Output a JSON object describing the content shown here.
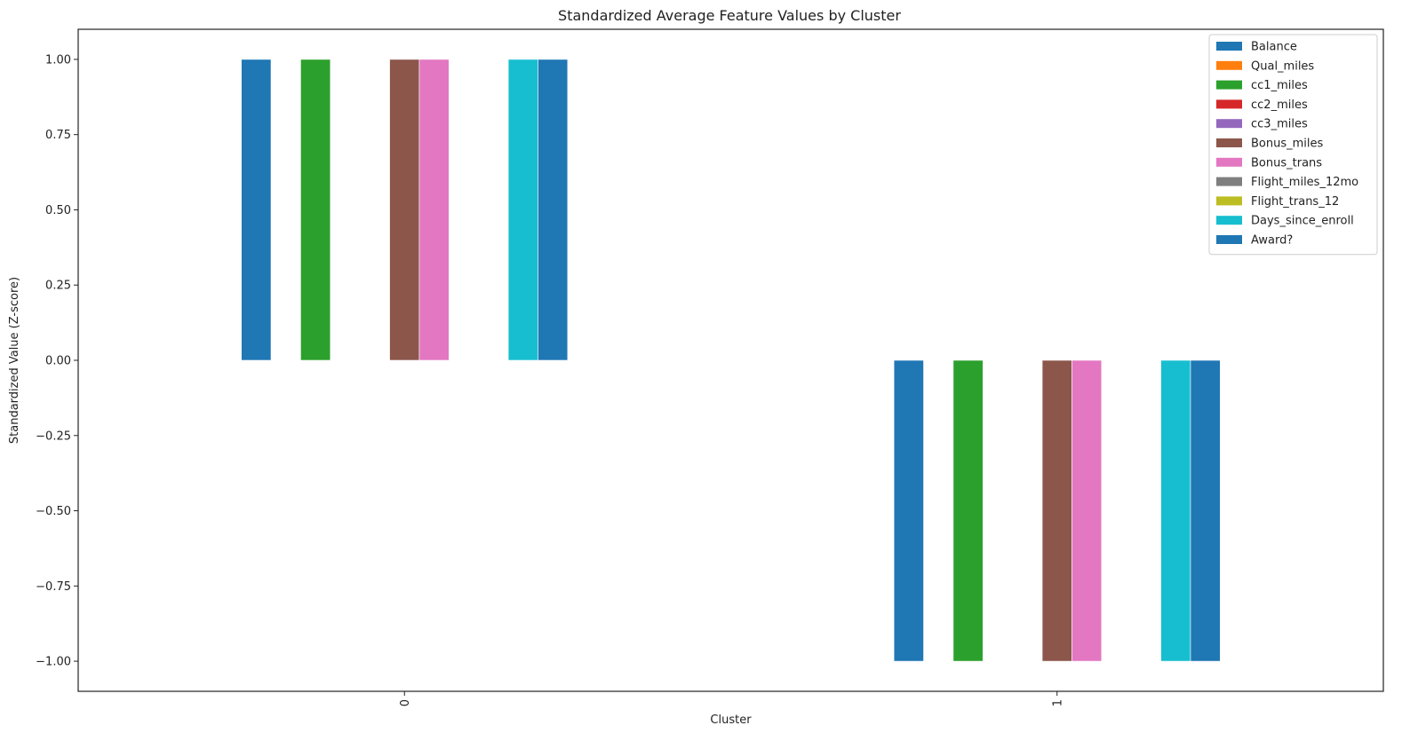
{
  "chart_data": {
    "type": "bar",
    "title": "Standardized Average Feature Values by Cluster",
    "xlabel": "Cluster",
    "ylabel": "Standardized Value (Z-score)",
    "categories": [
      "0",
      "1"
    ],
    "ylim": [
      -1.1,
      1.1
    ],
    "yticks": [
      1.0,
      0.75,
      0.5,
      0.25,
      0.0,
      -0.25,
      -0.5,
      -0.75,
      -1.0
    ],
    "ytick_labels": [
      "1.00",
      "0.75",
      "0.50",
      "0.25",
      "0.00",
      "−0.25",
      "−0.50",
      "−0.75",
      "−1.00"
    ],
    "grid": false,
    "legend_position": "top-right",
    "x_tick_rotation": 90,
    "series": [
      {
        "name": "Balance",
        "color": "#1f77b4",
        "values": [
          1.0,
          -1.0
        ]
      },
      {
        "name": "Qual_miles",
        "color": "#ff7f0e",
        "values": [
          0.0,
          0.0
        ]
      },
      {
        "name": "cc1_miles",
        "color": "#2ca02c",
        "values": [
          1.0,
          -1.0
        ]
      },
      {
        "name": "cc2_miles",
        "color": "#d62728",
        "values": [
          0.0,
          0.0
        ]
      },
      {
        "name": "cc3_miles",
        "color": "#9467bd",
        "values": [
          0.0,
          0.0
        ]
      },
      {
        "name": "Bonus_miles",
        "color": "#8c564b",
        "values": [
          1.0,
          -1.0
        ]
      },
      {
        "name": "Bonus_trans",
        "color": "#e377c2",
        "values": [
          1.0,
          -1.0
        ]
      },
      {
        "name": "Flight_miles_12mo",
        "color": "#7f7f7f",
        "values": [
          0.0,
          0.0
        ]
      },
      {
        "name": "Flight_trans_12",
        "color": "#bcbd22",
        "values": [
          0.0,
          0.0
        ]
      },
      {
        "name": "Days_since_enroll",
        "color": "#17becf",
        "values": [
          1.0,
          -1.0
        ]
      },
      {
        "name": "Award?",
        "color": "#1f77b4",
        "values": [
          1.0,
          -1.0
        ]
      }
    ]
  }
}
